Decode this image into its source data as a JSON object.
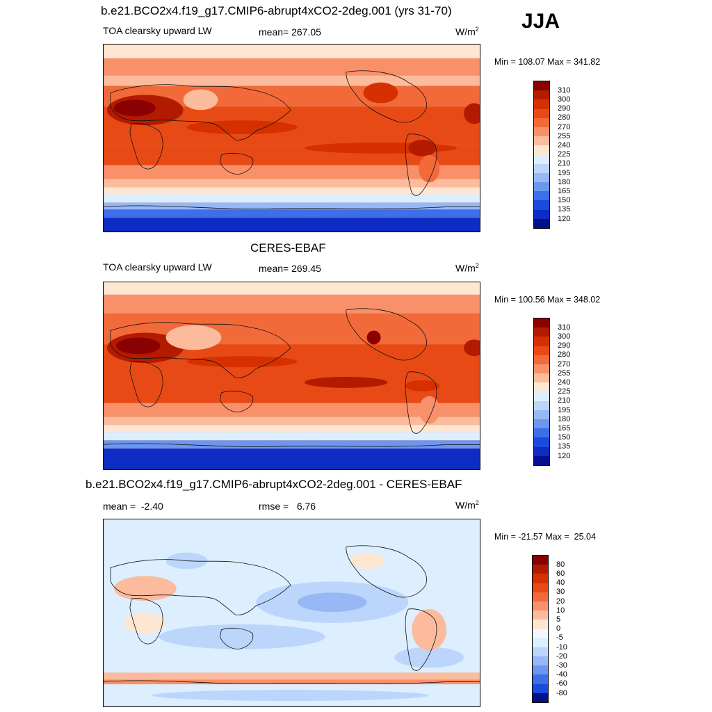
{
  "season": "JJA",
  "panels": [
    {
      "title": "b.e21.BCO2x4.f19_g17.CMIP6-abrupt4xCO2-2deg.001 (yrs 31-70)",
      "variable": "TOA clearsky upward LW",
      "stat_text": "mean= 267.05",
      "units": "W/m",
      "units_exp": "2",
      "minmax": "Min = 108.07 Max = 341.82",
      "colorbar": {
        "labels": [
          "310",
          "300",
          "290",
          "280",
          "270",
          "255",
          "240",
          "225",
          "210",
          "195",
          "180",
          "165",
          "150",
          "135",
          "120"
        ],
        "colors": [
          "#8b0000",
          "#b31b00",
          "#d63000",
          "#e84a15",
          "#f26a3a",
          "#f8906a",
          "#fbbb9c",
          "#fde6d2",
          "#ddeeff",
          "#bcd6fb",
          "#97b8f5",
          "#6d96ef",
          "#3e6ee8",
          "#1a4bdf",
          "#0d2cc4",
          "#030f8c"
        ]
      }
    },
    {
      "title": "CERES-EBAF",
      "variable": "TOA clearsky upward LW",
      "stat_text": "mean= 269.45",
      "units": "W/m",
      "units_exp": "2",
      "minmax": "Min = 100.56 Max = 348.02",
      "colorbar": {
        "labels": [
          "310",
          "300",
          "290",
          "280",
          "270",
          "255",
          "240",
          "225",
          "210",
          "195",
          "180",
          "165",
          "150",
          "135",
          "120"
        ],
        "colors": [
          "#8b0000",
          "#b31b00",
          "#d63000",
          "#e84a15",
          "#f26a3a",
          "#f8906a",
          "#fbbb9c",
          "#fde6d2",
          "#ddeeff",
          "#bcd6fb",
          "#97b8f5",
          "#6d96ef",
          "#3e6ee8",
          "#1a4bdf",
          "#0d2cc4",
          "#030f8c"
        ]
      }
    },
    {
      "title": "b.e21.BCO2x4.f19_g17.CMIP6-abrupt4xCO2-2deg.001 - CERES-EBAF",
      "stat_text": "mean =  -2.40",
      "stat2_text": "rmse =   6.76",
      "units": "W/m",
      "units_exp": "2",
      "minmax": "Min = -21.57 Max =  25.04",
      "colorbar": {
        "labels": [
          "80",
          "60",
          "40",
          "30",
          "20",
          "10",
          "5",
          "0",
          "-5",
          "-10",
          "-20",
          "-30",
          "-40",
          "-60",
          "-80"
        ],
        "colors": [
          "#8b0000",
          "#b31b00",
          "#d63000",
          "#e84a15",
          "#f26a3a",
          "#f8906a",
          "#fbbb9c",
          "#fde6d2",
          "#f4f6ff",
          "#ddeeff",
          "#bcd6fb",
          "#97b8f5",
          "#6d96ef",
          "#3e6ee8",
          "#1a4bdf",
          "#030f8c"
        ]
      }
    }
  ]
}
